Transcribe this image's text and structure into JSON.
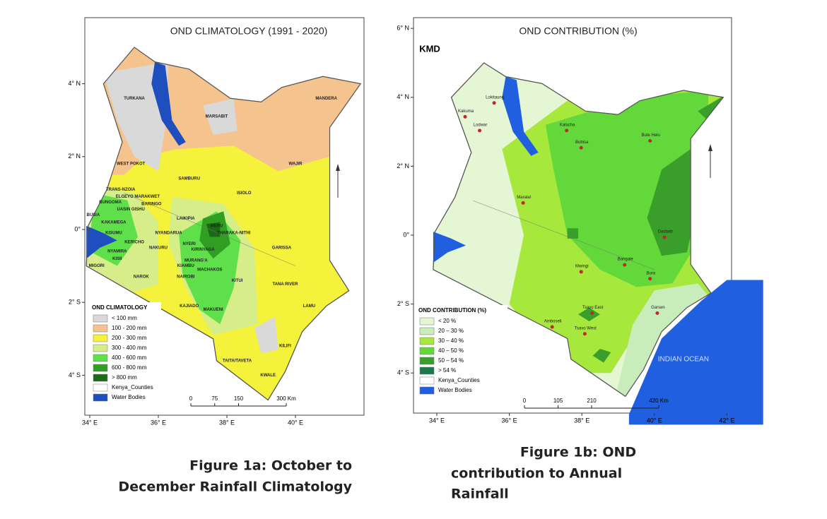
{
  "maps": [
    {
      "title": "OND CLIMATOLOGY (1991 - 2020)",
      "lat_labels": [
        "4° N",
        "2° N",
        "0°",
        "2° S",
        "4° S"
      ],
      "lon_labels": [
        "34° E",
        "36° E",
        "38° E",
        "40° E"
      ],
      "legend": {
        "title": "OND CLIMATOLOGY",
        "items": [
          {
            "label": "< 100 mm",
            "color": "#d9d9d9"
          },
          {
            "label": "100 - 200 mm",
            "color": "#f5c48e"
          },
          {
            "label": "200 - 300 mm",
            "color": "#f5f23c"
          },
          {
            "label": "300 - 400 mm",
            "color": "#d5ee8a"
          },
          {
            "label": "400 - 600 mm",
            "color": "#5fe04a"
          },
          {
            "label": "600 - 800 mm",
            "color": "#2f9e22"
          },
          {
            "label": "> 800 mm",
            "color": "#1d6a16"
          },
          {
            "label": "Kenya_Counties",
            "color": "#ffffff"
          },
          {
            "label": "Water Bodies",
            "color": "#1f4fbf"
          }
        ]
      },
      "scale": [
        "0",
        "75",
        "150",
        "300 Km"
      ],
      "places": [
        "TURKANA",
        "MARSABIT",
        "MANDERA",
        "WEST POKOT",
        "WAJIR",
        "SAMBURU",
        "ISIOLO",
        "TRANS-NZOIA",
        "ELGEYO MARAKWET",
        "BUNGOMA",
        "UASIN GISHU",
        "BUSIA",
        "KAKAMEGA",
        "BARINGO",
        "LAIKIPIA",
        "MERU",
        "THARAKA-NITHI",
        "KISUMU",
        "KERICHO",
        "NYANDARUA",
        "NYERI",
        "KIRINYAGA",
        "MURANG'A",
        "NYAMIRA",
        "KISII",
        "MIGORI",
        "NAKURU",
        "KIAMBU",
        "NAIROBI",
        "MACHAKOS",
        "NAROK",
        "KITUI",
        "GARISSA",
        "TANA RIVER",
        "KAJIADO",
        "MAKUENI",
        "LAMU",
        "KILIFI",
        "TAITA/TAVETA",
        "KWALE"
      ]
    },
    {
      "title": "OND CONTRIBUTION (%)",
      "logo": "KMD",
      "lat_labels": [
        "6° N",
        "4° N",
        "2° N",
        "0°",
        "2° S",
        "4° S"
      ],
      "lon_labels": [
        "34° E",
        "36° E",
        "38° E",
        "40° E",
        "42° E"
      ],
      "legend": {
        "title": "OND CONTRIBUTION (%)",
        "items": [
          {
            "label": "< 20 %",
            "color": "#e4f6d4"
          },
          {
            "label": "20 – 30 %",
            "color": "#c9ecbb"
          },
          {
            "label": "30 – 40 %",
            "color": "#a6e83c"
          },
          {
            "label": "40 – 50 %",
            "color": "#63d83a"
          },
          {
            "label": "50 – 54 %",
            "color": "#3a9e2a"
          },
          {
            "label": "> 54 %",
            "color": "#1b7a4a"
          },
          {
            "label": "Kenya_Counties",
            "color": "#ffffff"
          },
          {
            "label": "Water Bodies",
            "color": "#1f5fe0"
          }
        ]
      },
      "scale": [
        "0",
        "105",
        "210",
        "420 Km"
      ],
      "places": [
        "Lokitaung",
        "Kakuma",
        "Lodwar",
        "Kalacha",
        "Bubisa",
        "Bute Helu",
        "Maralal",
        "Dadaab",
        "Bangale",
        "Mwingi",
        "Bura",
        "Garsen",
        "Tsavo East",
        "Amboseli",
        "Tsavo West",
        "INDIAN OCEAN"
      ]
    }
  ],
  "captions": [
    [
      "Figure 1a: October to",
      "December Rainfall Climatology"
    ],
    [
      "Figure 1b: OND",
      "contribution to Annual",
      "Rainfall"
    ]
  ]
}
